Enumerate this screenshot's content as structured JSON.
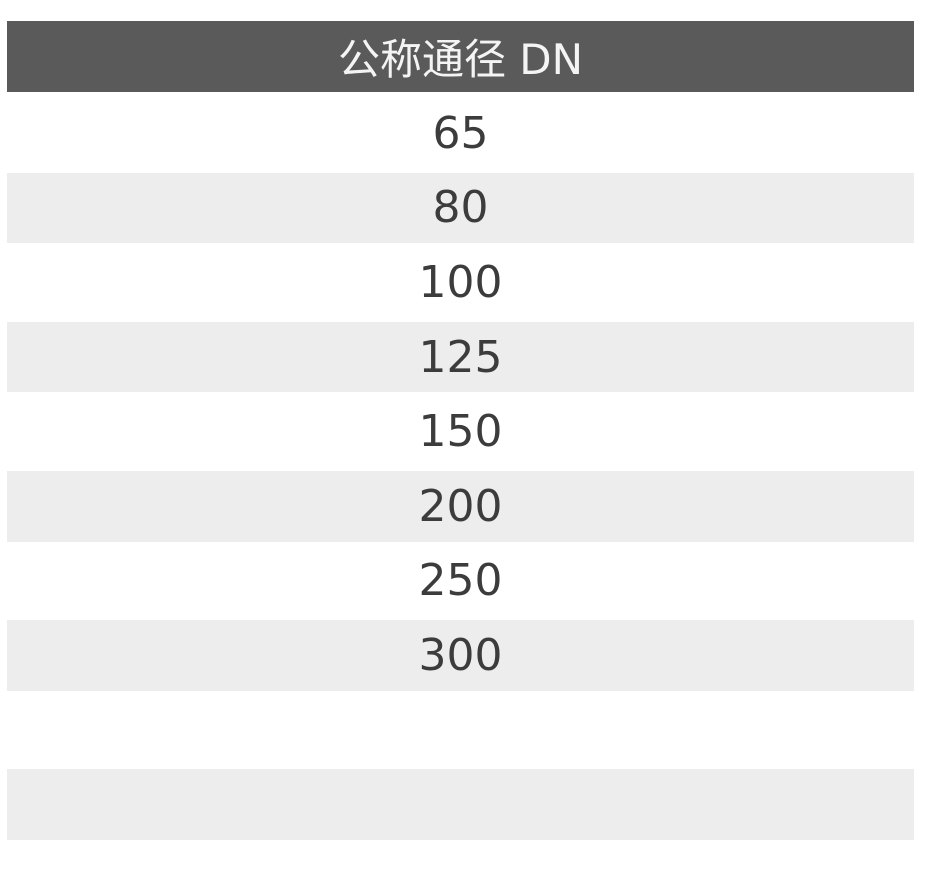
{
  "table": {
    "header": "公称通径 DN",
    "rows": [
      "65",
      "80",
      "100",
      "125",
      "150",
      "200",
      "250",
      "300",
      "",
      ""
    ]
  },
  "colors": {
    "header_bg": "#5a5a5a",
    "alt_row_bg": "#ededed",
    "text": "#3c3c3c"
  }
}
